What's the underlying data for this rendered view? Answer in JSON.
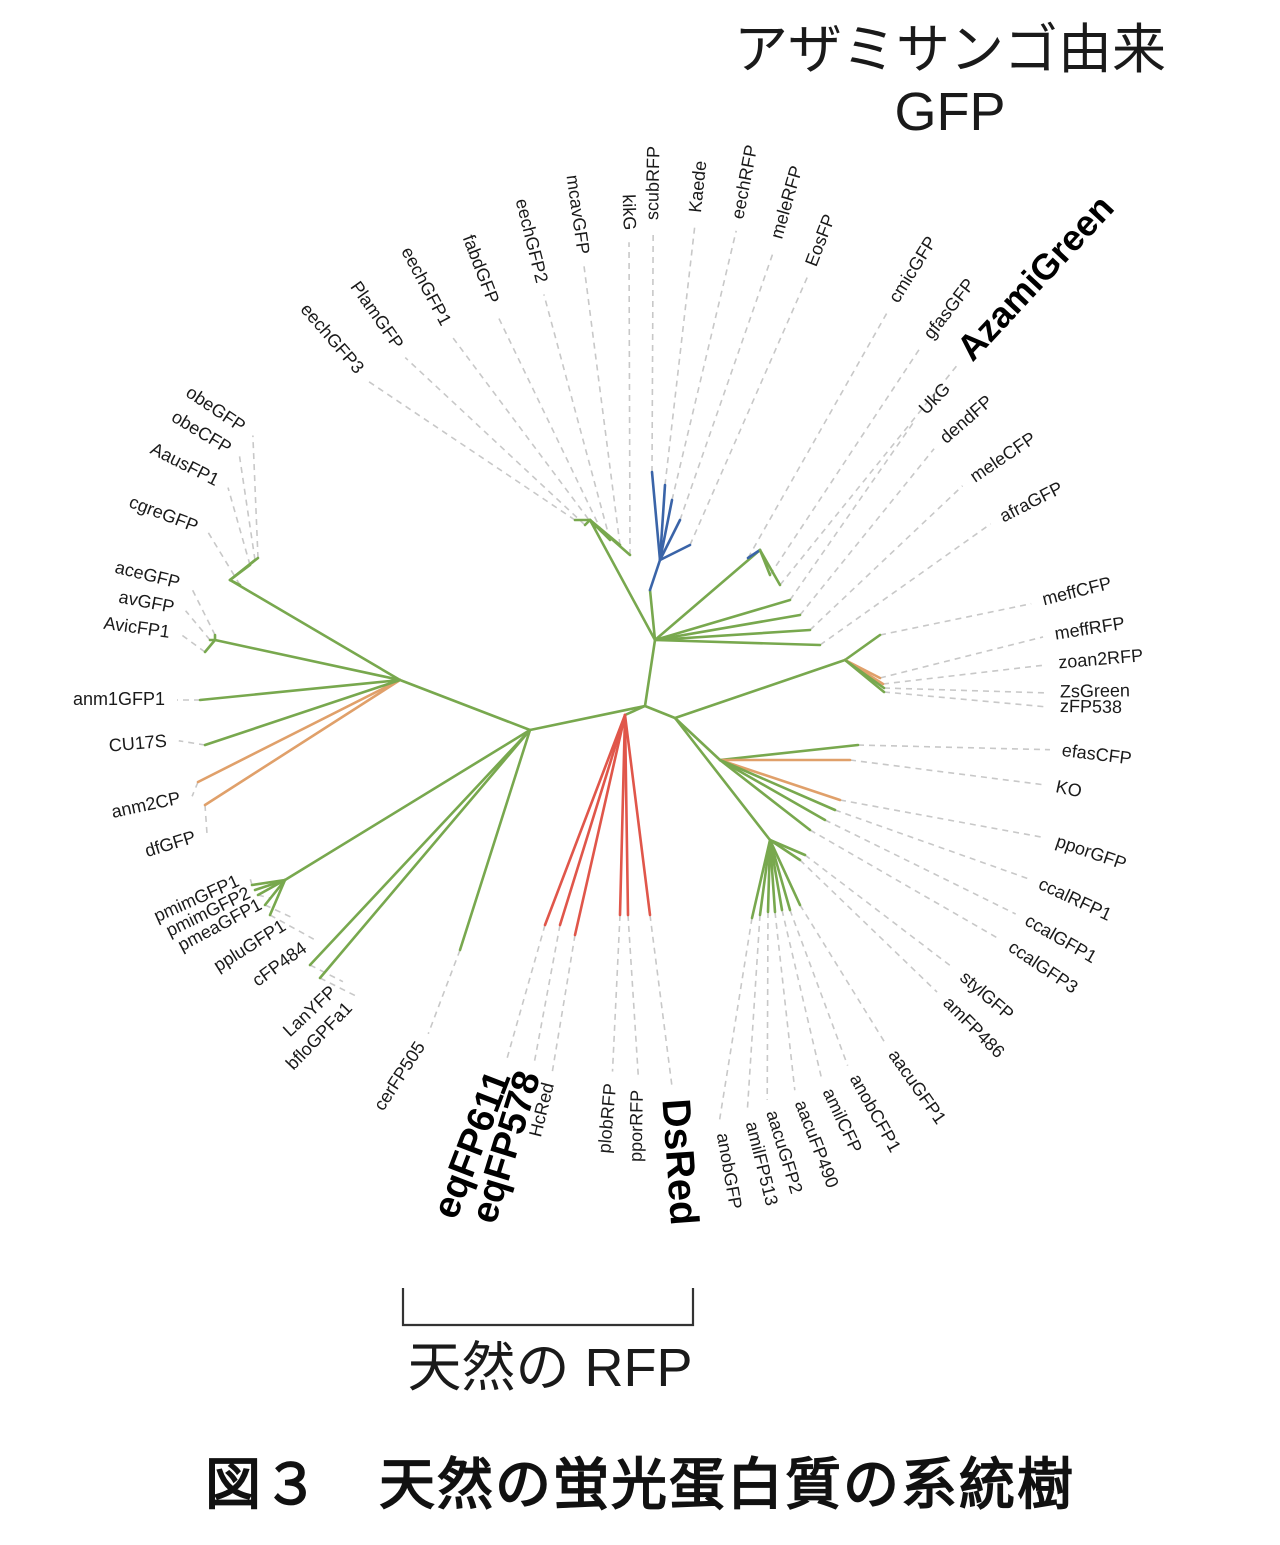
{
  "colors": {
    "green": "#78a84e",
    "blue": "#3a64a8",
    "orange": "#e0a06a",
    "red": "#e0564a",
    "guide": "#c8c8c8"
  },
  "annotations": {
    "gfp_line1": "アザミサンゴ由来",
    "gfp_line2": "GFP",
    "rfp_label": "天然の RFP"
  },
  "caption": "図３　天然の蛍光蛋白質の系統樹",
  "leaves": [
    {
      "id": "eechGFP3",
      "label": "eechGFP3",
      "color": "green",
      "highlight": false
    },
    {
      "id": "PlamGFP",
      "label": "PlamGFP",
      "color": "green",
      "highlight": false
    },
    {
      "id": "eechGFP1",
      "label": "eechGFP1",
      "color": "green",
      "highlight": false
    },
    {
      "id": "fabdGFP",
      "label": "fabdGFP",
      "color": "green",
      "highlight": false
    },
    {
      "id": "eechGFP2",
      "label": "eechGFP2",
      "color": "green",
      "highlight": false
    },
    {
      "id": "mcavGFP",
      "label": "mcavGFP",
      "color": "green",
      "highlight": false
    },
    {
      "id": "kikG",
      "label": "kikG",
      "color": "green",
      "highlight": false
    },
    {
      "id": "scubRFP",
      "label": "scubRFP",
      "color": "blue",
      "highlight": false
    },
    {
      "id": "Kaede",
      "label": "Kaede",
      "color": "blue",
      "highlight": false
    },
    {
      "id": "eechRFP",
      "label": "eechRFP",
      "color": "blue",
      "highlight": false
    },
    {
      "id": "meleRFP",
      "label": "meleRFP",
      "color": "blue",
      "highlight": false
    },
    {
      "id": "EosFP",
      "label": "EosFP",
      "color": "blue",
      "highlight": false
    },
    {
      "id": "cmicGFP",
      "label": "cmicGFP",
      "color": "blue",
      "highlight": false
    },
    {
      "id": "gfasGFP",
      "label": "gfasGFP",
      "color": "green",
      "highlight": false
    },
    {
      "id": "AzamiGreen",
      "label": "AzamiGreen",
      "color": "green",
      "highlight": true
    },
    {
      "id": "UkG",
      "label": "UkG",
      "color": "green",
      "highlight": false
    },
    {
      "id": "dendFP",
      "label": "dendFP",
      "color": "green",
      "highlight": false
    },
    {
      "id": "meleCFP",
      "label": "meleCFP",
      "color": "green",
      "highlight": false
    },
    {
      "id": "afraGFP",
      "label": "afraGFP",
      "color": "green",
      "highlight": false
    },
    {
      "id": "meffCFP",
      "label": "meffCFP",
      "color": "green",
      "highlight": false
    },
    {
      "id": "meffRFP",
      "label": "meffRFP",
      "color": "orange",
      "highlight": false
    },
    {
      "id": "zoan2RFP",
      "label": "zoan2RFP",
      "color": "orange",
      "highlight": false
    },
    {
      "id": "ZsGreen",
      "label": "ZsGreen",
      "color": "green",
      "highlight": false
    },
    {
      "id": "zFP538",
      "label": "zFP538",
      "color": "green",
      "highlight": false
    },
    {
      "id": "efasCFP",
      "label": "efasCFP",
      "color": "green",
      "highlight": false
    },
    {
      "id": "KO",
      "label": "KO",
      "color": "orange",
      "highlight": false
    },
    {
      "id": "pporGFP",
      "label": "pporGFP",
      "color": "orange",
      "highlight": false
    },
    {
      "id": "ccalRFP1",
      "label": "ccalRFP1",
      "color": "green",
      "highlight": false
    },
    {
      "id": "ccalGFP1",
      "label": "ccalGFP1",
      "color": "green",
      "highlight": false
    },
    {
      "id": "ccalGFP3",
      "label": "ccalGFP3",
      "color": "green",
      "highlight": false
    },
    {
      "id": "stylGFP",
      "label": "stylGFP",
      "color": "green",
      "highlight": false
    },
    {
      "id": "amFP486",
      "label": "amFP486",
      "color": "green",
      "highlight": false
    },
    {
      "id": "aacuGFP1",
      "label": "aacuGFP1",
      "color": "green",
      "highlight": false
    },
    {
      "id": "anobCFP1",
      "label": "anobCFP1",
      "color": "green",
      "highlight": false
    },
    {
      "id": "amilCFP",
      "label": "amilCFP",
      "color": "green",
      "highlight": false
    },
    {
      "id": "aacuFP490",
      "label": "aacuFP490",
      "color": "green",
      "highlight": false
    },
    {
      "id": "aacuGFP2",
      "label": "aacuGFP2",
      "color": "green",
      "highlight": false
    },
    {
      "id": "amilFP513",
      "label": "amilFP513",
      "color": "green",
      "highlight": false
    },
    {
      "id": "anobGFP",
      "label": "anobGFP",
      "color": "green",
      "highlight": false
    },
    {
      "id": "DsRed",
      "label": "DsRed",
      "color": "red",
      "highlight": true
    },
    {
      "id": "pporRFP",
      "label": "pporRFP",
      "color": "red",
      "highlight": false
    },
    {
      "id": "plobRFP",
      "label": "plobRFP",
      "color": "red",
      "highlight": false
    },
    {
      "id": "HcRed",
      "label": "HcRed",
      "color": "red",
      "highlight": false
    },
    {
      "id": "eqFP578",
      "label": "eqFP578",
      "color": "red",
      "highlight": true
    },
    {
      "id": "eqFP611",
      "label": "eqFP611",
      "color": "red",
      "highlight": true
    },
    {
      "id": "cerFP505",
      "label": "cerFP505",
      "color": "green",
      "highlight": false
    },
    {
      "id": "bfloGPFa1",
      "label": "bfloGPFa1",
      "color": "green",
      "highlight": false
    },
    {
      "id": "LanYFP",
      "label": "LanYFP",
      "color": "green",
      "highlight": false
    },
    {
      "id": "cFP484",
      "label": "cFP484",
      "color": "green",
      "highlight": false
    },
    {
      "id": "ppluGFP1",
      "label": "ppluGFP1",
      "color": "green",
      "highlight": false
    },
    {
      "id": "pmeaGFP1",
      "label": "pmeaGFP1",
      "color": "green",
      "highlight": false
    },
    {
      "id": "pmimGFP2",
      "label": "pmimGFP2",
      "color": "green",
      "highlight": false
    },
    {
      "id": "pmimGFP1",
      "label": "pmimGFP1",
      "color": "green",
      "highlight": false
    },
    {
      "id": "dfGFP",
      "label": "dfGFP",
      "color": "orange",
      "highlight": false
    },
    {
      "id": "anm2CP",
      "label": "anm2CP",
      "color": "orange",
      "highlight": false
    },
    {
      "id": "CU17S",
      "label": "CU17S",
      "color": "green",
      "highlight": false
    },
    {
      "id": "anm1GFP1",
      "label": "anm1GFP1",
      "color": "green",
      "highlight": false
    },
    {
      "id": "AvicFP1",
      "label": "AvicFP1",
      "color": "green",
      "highlight": false
    },
    {
      "id": "avGFP",
      "label": "avGFP",
      "color": "green",
      "highlight": false
    },
    {
      "id": "aceGFP",
      "label": "aceGFP",
      "color": "green",
      "highlight": false
    },
    {
      "id": "cgreGFP",
      "label": "cgreGFP",
      "color": "green",
      "highlight": false
    },
    {
      "id": "AausFP1",
      "label": "AausFP1",
      "color": "green",
      "highlight": false
    },
    {
      "id": "obeCFP",
      "label": "obeCFP",
      "color": "green",
      "highlight": false
    },
    {
      "id": "obeGFP",
      "label": "obeGFP",
      "color": "green",
      "highlight": false
    }
  ]
}
